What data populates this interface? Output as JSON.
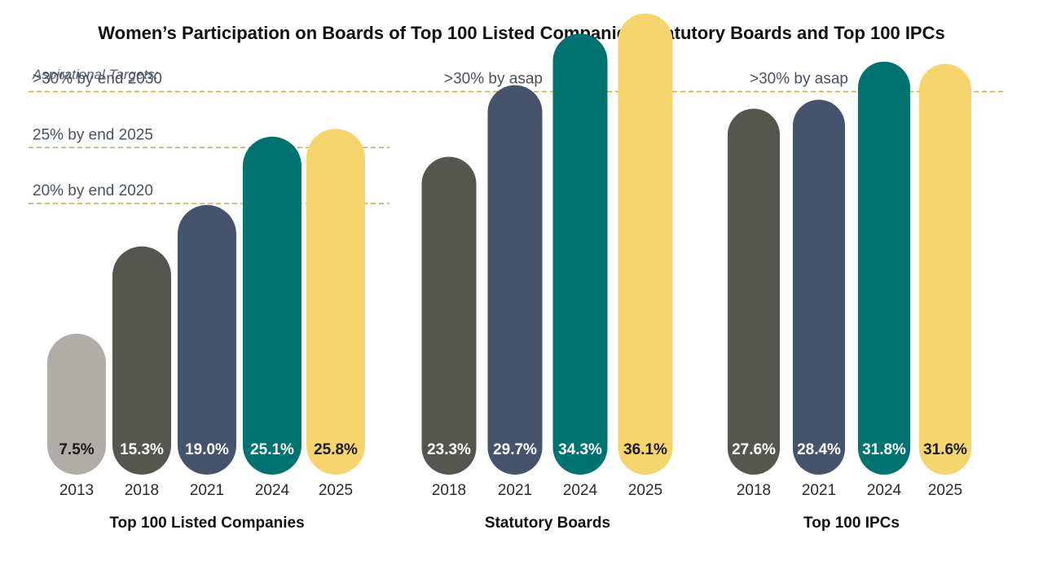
{
  "chart_data": {
    "type": "bar",
    "title": "Women’s Participation on Boards of Top 100 Listed Companies, Statutory Boards and Top 100 IPCs",
    "y_unit": "%",
    "ylim": [
      0,
      40
    ],
    "grid": false,
    "annotations": {
      "aspirational_label": "Aspirational Targets:",
      "targets": [
        {
          "label": ">30% by end 2030",
          "value": 30,
          "group": "Top 100 Listed Companies"
        },
        {
          "label": "25% by end 2025",
          "value": 25,
          "group": "Top 100 Listed Companies"
        },
        {
          "label": "20% by end 2020",
          "value": 20,
          "group": "Top 100 Listed Companies"
        },
        {
          "label": ">30% by asap",
          "value": 30,
          "group": "Statutory Boards"
        },
        {
          "label": ">30% by asap",
          "value": 30,
          "group": "Top 100 IPCs"
        }
      ]
    },
    "groups": [
      {
        "label": "Top 100 Listed Companies",
        "bars": [
          {
            "year": "2013",
            "value": 7.5,
            "label": "7.5%",
            "color": "#b0aca8",
            "label_color": "#1a1a1a"
          },
          {
            "year": "2018",
            "value": 15.3,
            "label": "15.3%",
            "color": "#555650",
            "label_color": "#ffffff"
          },
          {
            "year": "2021",
            "value": 19.0,
            "label": "19.0%",
            "color": "#45546b",
            "label_color": "#ffffff"
          },
          {
            "year": "2024",
            "value": 25.1,
            "label": "25.1%",
            "color": "#007370",
            "label_color": "#ffffff"
          },
          {
            "year": "2025",
            "value": 25.8,
            "label": "25.8%",
            "color": "#f6d46c",
            "label_color": "#1a1a1a"
          }
        ]
      },
      {
        "label": "Statutory Boards",
        "bars": [
          {
            "year": "2018",
            "value": 23.3,
            "label": "23.3%",
            "color": "#555650",
            "label_color": "#ffffff"
          },
          {
            "year": "2021",
            "value": 29.7,
            "label": "29.7%",
            "color": "#45546b",
            "label_color": "#ffffff"
          },
          {
            "year": "2024",
            "value": 34.3,
            "label": "34.3%",
            "color": "#007370",
            "label_color": "#ffffff"
          },
          {
            "year": "2025",
            "value": 36.1,
            "label": "36.1%",
            "color": "#f6d46c",
            "label_color": "#1a1a1a"
          }
        ]
      },
      {
        "label": "Top 100 IPCs",
        "bars": [
          {
            "year": "2018",
            "value": 27.6,
            "label": "27.6%",
            "color": "#555650",
            "label_color": "#ffffff"
          },
          {
            "year": "2021",
            "value": 28.4,
            "label": "28.4%",
            "color": "#45546b",
            "label_color": "#ffffff"
          },
          {
            "year": "2024",
            "value": 31.8,
            "label": "31.8%",
            "color": "#007370",
            "label_color": "#ffffff"
          },
          {
            "year": "2025",
            "value": 31.6,
            "label": "31.6%",
            "color": "#f6d46c",
            "label_color": "#1a1a1a"
          }
        ]
      }
    ],
    "target_line_color": "#c9ab45"
  }
}
